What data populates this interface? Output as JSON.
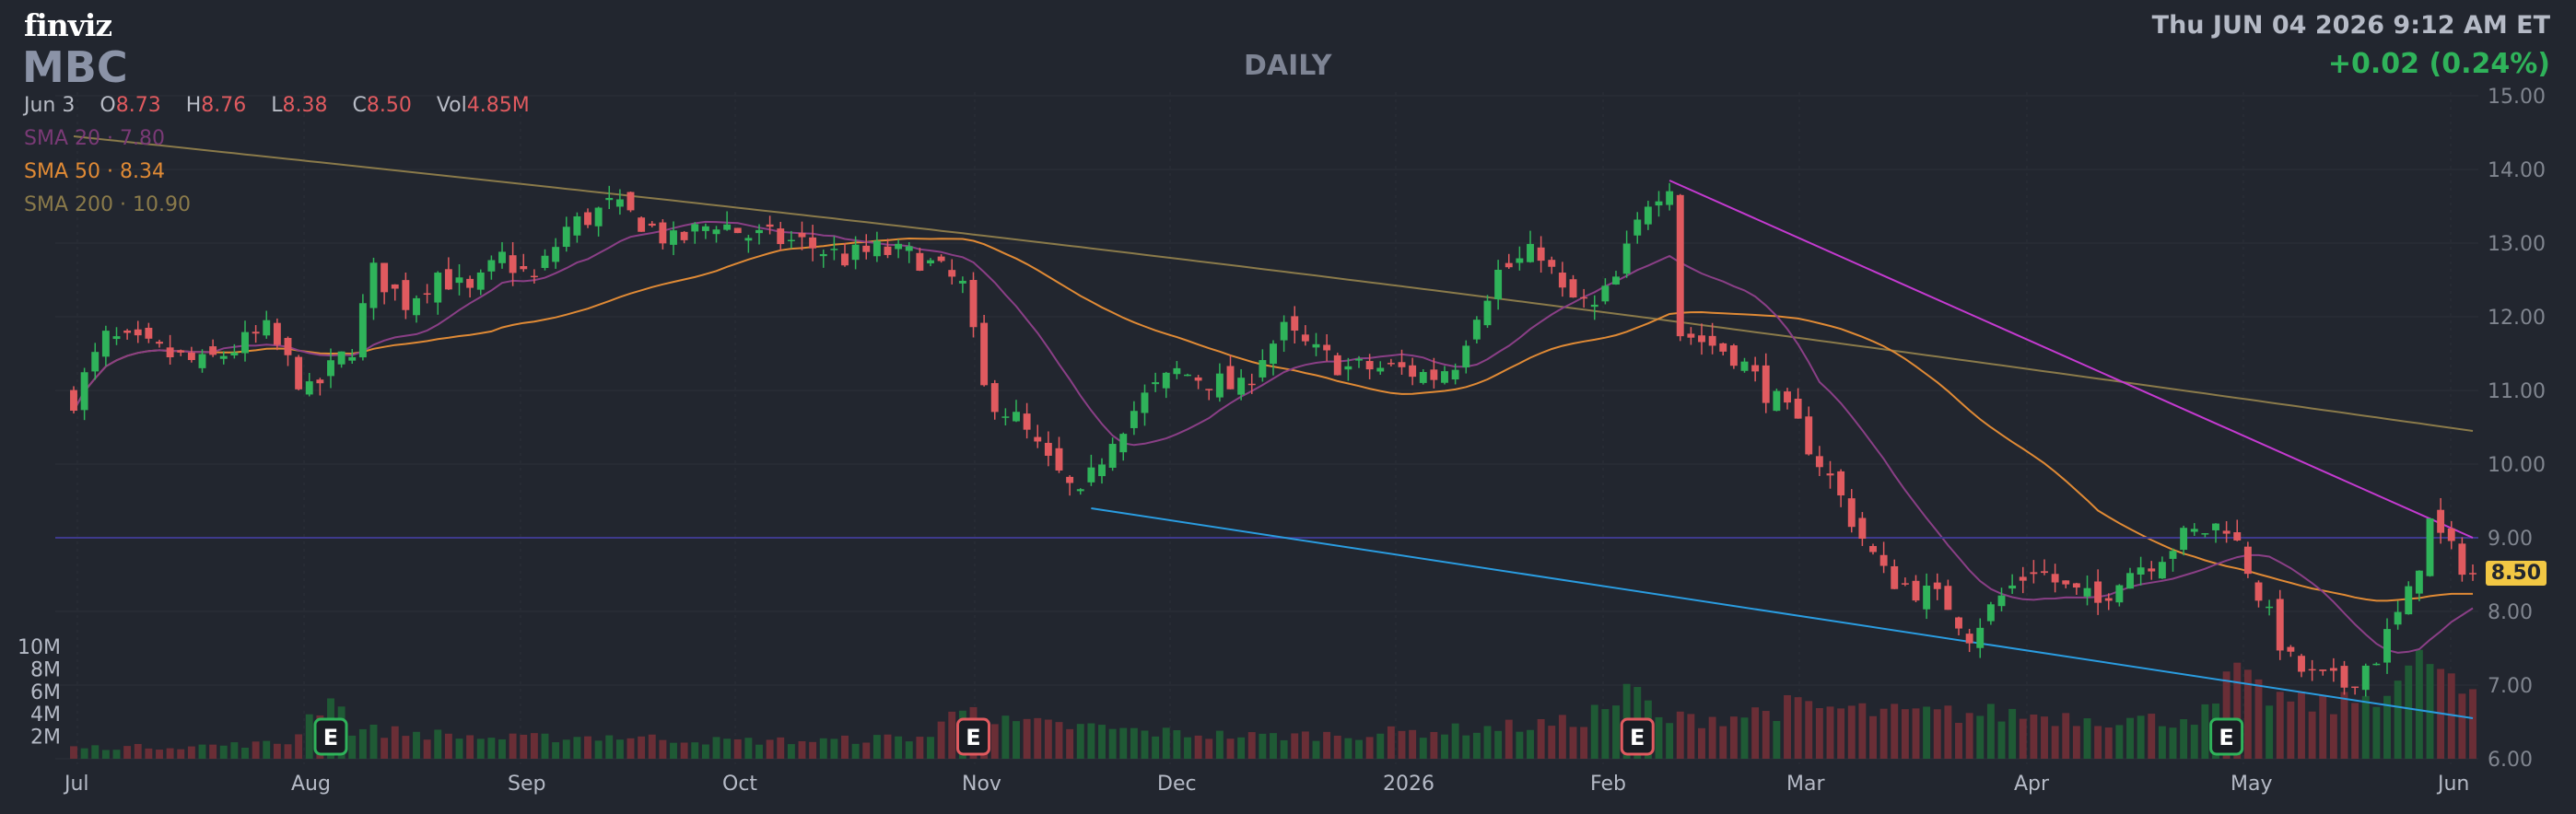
{
  "header": {
    "logo": "finviz",
    "ticker": "MBC",
    "period": "DAILY",
    "datetime": "Thu JUN 04 2026 9:12 AM ET",
    "change": "+0.02 (0.24%)"
  },
  "ohlc": {
    "date": "Jun 3",
    "o_label": "O",
    "o": "8.73",
    "h_label": "H",
    "h": "8.76",
    "l_label": "L",
    "l": "8.38",
    "c_label": "C",
    "c": "8.50",
    "vol_label": "Vol",
    "vol": "4.85M"
  },
  "legend": {
    "sma20": "SMA 20 · 7.80",
    "sma50": "SMA 50 · 8.34",
    "sma200": "SMA 200 · 10.90"
  },
  "last_price": "8.50",
  "colors": {
    "background": "#22262f",
    "up": "#2fb35a",
    "down": "#e05a5f",
    "sma20": "#8a3f86",
    "sma50": "#e08a35",
    "sma200": "#8a7a4a",
    "trend_upper": "#c43ad0",
    "trend_lower": "#2a9ce0",
    "horizontal": "#3e3a8c",
    "earnings_up": "#2fb35a",
    "earnings_down": "#e05a5f"
  },
  "chart_data": {
    "type": "candlestick",
    "y_ticks": [
      "15.00",
      "14.00",
      "13.00",
      "12.00",
      "11.00",
      "10.00",
      "9.00",
      "8.00",
      "7.00",
      "6.00"
    ],
    "ylim": [
      6,
      15
    ],
    "x_ticks": [
      "Jul",
      "Aug",
      "Sep",
      "Oct",
      "Nov",
      "Dec",
      "2026",
      "Feb",
      "Mar",
      "Apr",
      "May",
      "Jun"
    ],
    "volume_ticks": [
      "10M",
      "8M",
      "6M",
      "4M",
      "2M"
    ],
    "earnings": [
      {
        "label": "E",
        "type": "up",
        "date_index": 24
      },
      {
        "label": "E",
        "type": "down",
        "date_index": 84
      },
      {
        "label": "E",
        "type": "down",
        "date_index": 146
      },
      {
        "label": "E",
        "type": "up",
        "date_index": 201
      }
    ],
    "close_anchors": [
      [
        0,
        10.9
      ],
      [
        3,
        11.7
      ],
      [
        6,
        11.6
      ],
      [
        12,
        11.35
      ],
      [
        18,
        11.8
      ],
      [
        22,
        10.95
      ],
      [
        26,
        11.6
      ],
      [
        28,
        12.6
      ],
      [
        31,
        12.2
      ],
      [
        34,
        12.6
      ],
      [
        37,
        12.3
      ],
      [
        40,
        12.8
      ],
      [
        43,
        12.5
      ],
      [
        46,
        13.2
      ],
      [
        50,
        13.5
      ],
      [
        53,
        13.3
      ],
      [
        56,
        13.0
      ],
      [
        60,
        13.3
      ],
      [
        63,
        13.1
      ],
      [
        68,
        13.0
      ],
      [
        72,
        12.8
      ],
      [
        75,
        12.9
      ],
      [
        79,
        12.8
      ],
      [
        83,
        12.4
      ],
      [
        85,
        11.0
      ],
      [
        88,
        10.6
      ],
      [
        91,
        10.0
      ],
      [
        94,
        9.5
      ],
      [
        97,
        10.4
      ],
      [
        100,
        10.9
      ],
      [
        103,
        11.25
      ],
      [
        106,
        11.15
      ],
      [
        109,
        11.0
      ],
      [
        111,
        11.5
      ],
      [
        113,
        11.8
      ],
      [
        116,
        11.5
      ],
      [
        119,
        11.3
      ],
      [
        123,
        11.3
      ],
      [
        127,
        11.2
      ],
      [
        129,
        11.4
      ],
      [
        131,
        12.1
      ],
      [
        133,
        12.6
      ],
      [
        137,
        12.9
      ],
      [
        139,
        12.3
      ],
      [
        142,
        12.1
      ],
      [
        144,
        12.5
      ],
      [
        147,
        13.6
      ],
      [
        149,
        13.85
      ],
      [
        150,
        11.8
      ],
      [
        155,
        11.5
      ],
      [
        158,
        11.0
      ],
      [
        161,
        10.5
      ],
      [
        164,
        9.8
      ],
      [
        167,
        9.0
      ],
      [
        169,
        8.5
      ],
      [
        172,
        8.3
      ],
      [
        175,
        8.1
      ],
      [
        177,
        7.7
      ],
      [
        180,
        8.2
      ],
      [
        183,
        8.6
      ],
      [
        186,
        8.3
      ],
      [
        189,
        8.1
      ],
      [
        191,
        8.5
      ],
      [
        194,
        8.7
      ],
      [
        197,
        9.0
      ],
      [
        201,
        9.2
      ],
      [
        203,
        8.6
      ],
      [
        205,
        7.9
      ],
      [
        207,
        7.3
      ],
      [
        209,
        7.1
      ],
      [
        212,
        7.0
      ],
      [
        215,
        7.4
      ],
      [
        218,
        8.2
      ],
      [
        220,
        9.2
      ],
      [
        222,
        8.8
      ],
      [
        224,
        8.5
      ]
    ],
    "volume_anchors": [
      [
        0,
        1.0
      ],
      [
        10,
        1.1
      ],
      [
        20,
        1.4
      ],
      [
        24,
        6.0
      ],
      [
        26,
        2.6
      ],
      [
        30,
        2.4
      ],
      [
        40,
        1.8
      ],
      [
        50,
        2.0
      ],
      [
        60,
        1.6
      ],
      [
        70,
        1.6
      ],
      [
        80,
        2.0
      ],
      [
        84,
        5.8
      ],
      [
        86,
        3.2
      ],
      [
        90,
        3.0
      ],
      [
        95,
        2.8
      ],
      [
        100,
        2.4
      ],
      [
        110,
        2.0
      ],
      [
        120,
        2.2
      ],
      [
        130,
        2.6
      ],
      [
        140,
        3.2
      ],
      [
        146,
        6.0
      ],
      [
        148,
        3.4
      ],
      [
        155,
        3.8
      ],
      [
        160,
        4.6
      ],
      [
        165,
        4.4
      ],
      [
        170,
        4.0
      ],
      [
        180,
        4.0
      ],
      [
        190,
        3.6
      ],
      [
        195,
        3.4
      ],
      [
        200,
        4.2
      ],
      [
        201,
        7.6
      ],
      [
        203,
        6.4
      ],
      [
        205,
        5.6
      ],
      [
        208,
        4.8
      ],
      [
        212,
        4.8
      ],
      [
        215,
        6.0
      ],
      [
        218,
        7.4
      ],
      [
        220,
        9.0
      ],
      [
        222,
        6.6
      ],
      [
        224,
        5.0
      ]
    ],
    "trendlines": [
      {
        "name": "upper",
        "color": "trend_upper",
        "from": [
          149,
          13.85
        ],
        "to": [
          224,
          9.0
        ]
      },
      {
        "name": "lower",
        "color": "trend_lower",
        "from": [
          95,
          9.4
        ],
        "to": [
          224,
          6.55
        ]
      }
    ],
    "horizontal_line": 9.0
  }
}
